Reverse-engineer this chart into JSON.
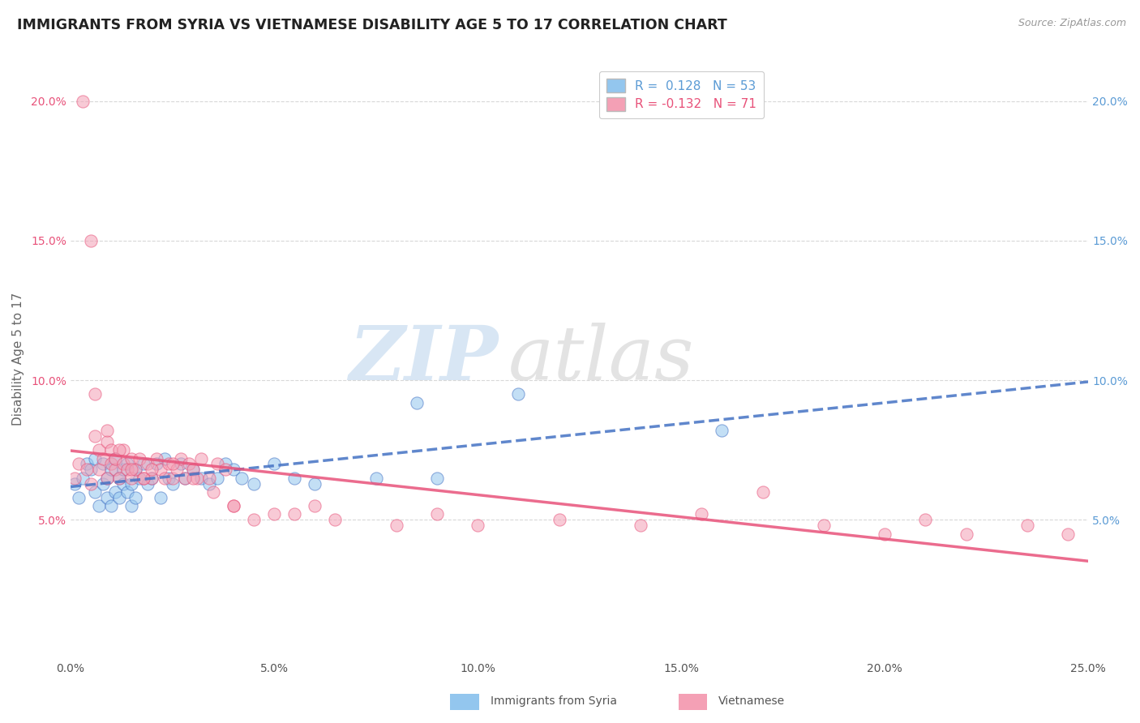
{
  "title": "IMMIGRANTS FROM SYRIA VS VIETNAMESE DISABILITY AGE 5 TO 17 CORRELATION CHART",
  "source_text": "Source: ZipAtlas.com",
  "ylabel": "Disability Age 5 to 17",
  "xlabel": "",
  "xlim": [
    0.0,
    0.25
  ],
  "ylim": [
    0.0,
    0.215
  ],
  "xtick_labels": [
    "0.0%",
    "5.0%",
    "10.0%",
    "15.0%",
    "20.0%",
    "25.0%"
  ],
  "xtick_vals": [
    0.0,
    0.05,
    0.1,
    0.15,
    0.2,
    0.25
  ],
  "ytick_labels": [
    "5.0%",
    "10.0%",
    "15.0%",
    "20.0%"
  ],
  "ytick_vals": [
    0.05,
    0.1,
    0.15,
    0.2
  ],
  "color_syria": "#93C6EE",
  "color_vietnamese": "#F4A0B5",
  "color_trendline_syria": "#4472C4",
  "color_trendline_vietnamese": "#E8527A",
  "color_right_tick": "#5B9BD5",
  "color_left_tick": "#E8527A",
  "R_syria": 0.128,
  "N_syria": 53,
  "R_vietnamese": -0.132,
  "N_vietnamese": 71,
  "legend_label_syria": "Immigrants from Syria",
  "legend_label_vietnamese": "Vietnamese",
  "watermark_zip": "ZIP",
  "watermark_atlas": "atlas",
  "title_fontsize": 12.5,
  "label_fontsize": 11,
  "tick_fontsize": 10,
  "background_color": "#FFFFFF",
  "grid_color": "#D8D8D8",
  "syria_x": [
    0.001,
    0.002,
    0.003,
    0.004,
    0.005,
    0.006,
    0.006,
    0.007,
    0.008,
    0.008,
    0.009,
    0.009,
    0.01,
    0.01,
    0.011,
    0.011,
    0.012,
    0.012,
    0.013,
    0.013,
    0.014,
    0.014,
    0.015,
    0.015,
    0.016,
    0.016,
    0.017,
    0.018,
    0.019,
    0.02,
    0.021,
    0.022,
    0.023,
    0.024,
    0.025,
    0.027,
    0.028,
    0.03,
    0.032,
    0.034,
    0.036,
    0.038,
    0.04,
    0.042,
    0.045,
    0.05,
    0.055,
    0.06,
    0.075,
    0.085,
    0.09,
    0.11,
    0.16
  ],
  "syria_y": [
    0.063,
    0.058,
    0.065,
    0.07,
    0.068,
    0.06,
    0.072,
    0.055,
    0.063,
    0.07,
    0.058,
    0.065,
    0.055,
    0.068,
    0.06,
    0.072,
    0.065,
    0.058,
    0.063,
    0.068,
    0.06,
    0.07,
    0.055,
    0.063,
    0.058,
    0.068,
    0.065,
    0.07,
    0.063,
    0.065,
    0.07,
    0.058,
    0.072,
    0.065,
    0.063,
    0.07,
    0.065,
    0.068,
    0.065,
    0.063,
    0.065,
    0.07,
    0.068,
    0.065,
    0.063,
    0.07,
    0.065,
    0.063,
    0.065,
    0.092,
    0.065,
    0.095,
    0.082
  ],
  "vietnamese_x": [
    0.001,
    0.002,
    0.003,
    0.004,
    0.005,
    0.005,
    0.006,
    0.007,
    0.007,
    0.008,
    0.009,
    0.009,
    0.01,
    0.01,
    0.011,
    0.011,
    0.012,
    0.013,
    0.013,
    0.014,
    0.015,
    0.015,
    0.016,
    0.017,
    0.018,
    0.019,
    0.02,
    0.021,
    0.022,
    0.023,
    0.024,
    0.025,
    0.026,
    0.027,
    0.028,
    0.029,
    0.03,
    0.031,
    0.032,
    0.034,
    0.036,
    0.038,
    0.04,
    0.045,
    0.05,
    0.06,
    0.065,
    0.08,
    0.09,
    0.1,
    0.12,
    0.14,
    0.155,
    0.17,
    0.185,
    0.2,
    0.21,
    0.22,
    0.235,
    0.245,
    0.006,
    0.009,
    0.012,
    0.015,
    0.018,
    0.02,
    0.025,
    0.03,
    0.035,
    0.04,
    0.055
  ],
  "vietnamese_y": [
    0.065,
    0.07,
    0.2,
    0.068,
    0.063,
    0.15,
    0.08,
    0.075,
    0.068,
    0.072,
    0.078,
    0.065,
    0.07,
    0.075,
    0.068,
    0.072,
    0.065,
    0.07,
    0.075,
    0.068,
    0.072,
    0.065,
    0.068,
    0.072,
    0.065,
    0.07,
    0.065,
    0.072,
    0.068,
    0.065,
    0.07,
    0.065,
    0.068,
    0.072,
    0.065,
    0.07,
    0.068,
    0.065,
    0.072,
    0.065,
    0.07,
    0.068,
    0.055,
    0.05,
    0.052,
    0.055,
    0.05,
    0.048,
    0.052,
    0.048,
    0.05,
    0.048,
    0.052,
    0.06,
    0.048,
    0.045,
    0.05,
    0.045,
    0.048,
    0.045,
    0.095,
    0.082,
    0.075,
    0.068,
    0.065,
    0.068,
    0.07,
    0.065,
    0.06,
    0.055,
    0.052
  ]
}
